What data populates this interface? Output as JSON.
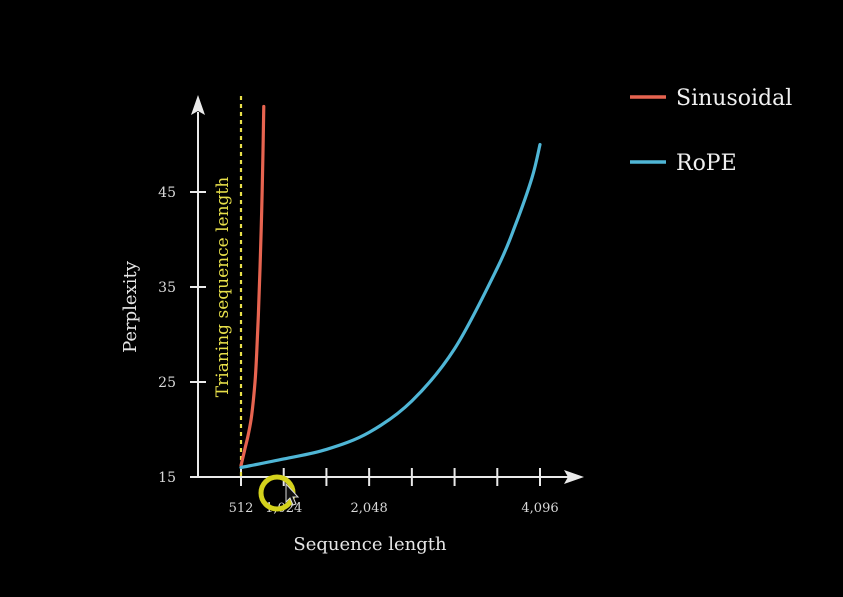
{
  "chart_data": {
    "type": "line",
    "xlabel": "Sequence length",
    "ylabel": "Perplexity",
    "xlim": [
      0,
      4600
    ],
    "ylim": [
      15,
      60
    ],
    "x_ticks": [
      512,
      1024,
      1536,
      2048,
      2560,
      3072,
      3584,
      4096
    ],
    "x_tick_labels": [
      {
        "value": 512,
        "label": "512"
      },
      {
        "value": 1024,
        "label": "1,024"
      },
      {
        "value": 2048,
        "label": "2,048"
      },
      {
        "value": 4096,
        "label": "4,096"
      }
    ],
    "y_ticks": [
      {
        "value": 15,
        "label": "15"
      },
      {
        "value": 25,
        "label": "25"
      },
      {
        "value": 35,
        "label": "35"
      },
      {
        "value": 45,
        "label": "45"
      }
    ],
    "series": [
      {
        "name": "Sinusoidal",
        "color": "#e76450",
        "x": [
          512,
          560,
          600,
          640,
          680,
          700,
          720,
          740,
          760,
          775,
          785
        ],
        "y": [
          16.2,
          18.0,
          19.5,
          21.5,
          25.0,
          28.0,
          32.0,
          37.0,
          43.0,
          49.0,
          54.0
        ]
      },
      {
        "name": "RoPE",
        "color": "#4fb6d6",
        "x": [
          512,
          1024,
          1536,
          2048,
          2560,
          3072,
          3584,
          3800,
          4000,
          4096
        ],
        "y": [
          16.0,
          16.9,
          17.9,
          19.7,
          23.0,
          28.5,
          37.0,
          41.5,
          46.5,
          50.0
        ]
      }
    ],
    "annotations": [
      {
        "text": "Trianing sequence length",
        "x": 512,
        "color": "#e8e04a",
        "style": "dotted-vertical-line"
      }
    ],
    "legend_position": "top-right",
    "grid": false
  },
  "cursor": {
    "icon": "mouse-pointer-icon",
    "highlight_color": "#d4d21c"
  }
}
